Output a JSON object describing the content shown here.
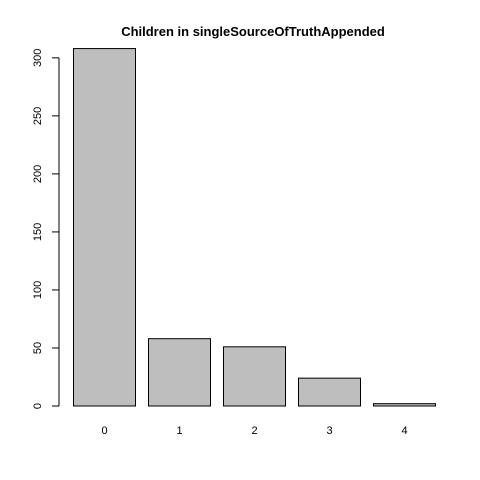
{
  "chart_data": {
    "type": "bar",
    "title": "Children in singleSourceOfTruthAppended",
    "xlabel": "",
    "ylabel": "",
    "categories": [
      "0",
      "1",
      "2",
      "3",
      "4"
    ],
    "values": [
      308,
      58,
      51,
      24,
      2
    ],
    "ylim": [
      0,
      310
    ],
    "yticks": [
      0,
      50,
      100,
      150,
      200,
      250,
      300
    ],
    "grid": false,
    "legend": "none",
    "colors": {
      "bar_fill": "#bebebe",
      "bar_stroke": "#000000",
      "axis": "#000000"
    }
  }
}
